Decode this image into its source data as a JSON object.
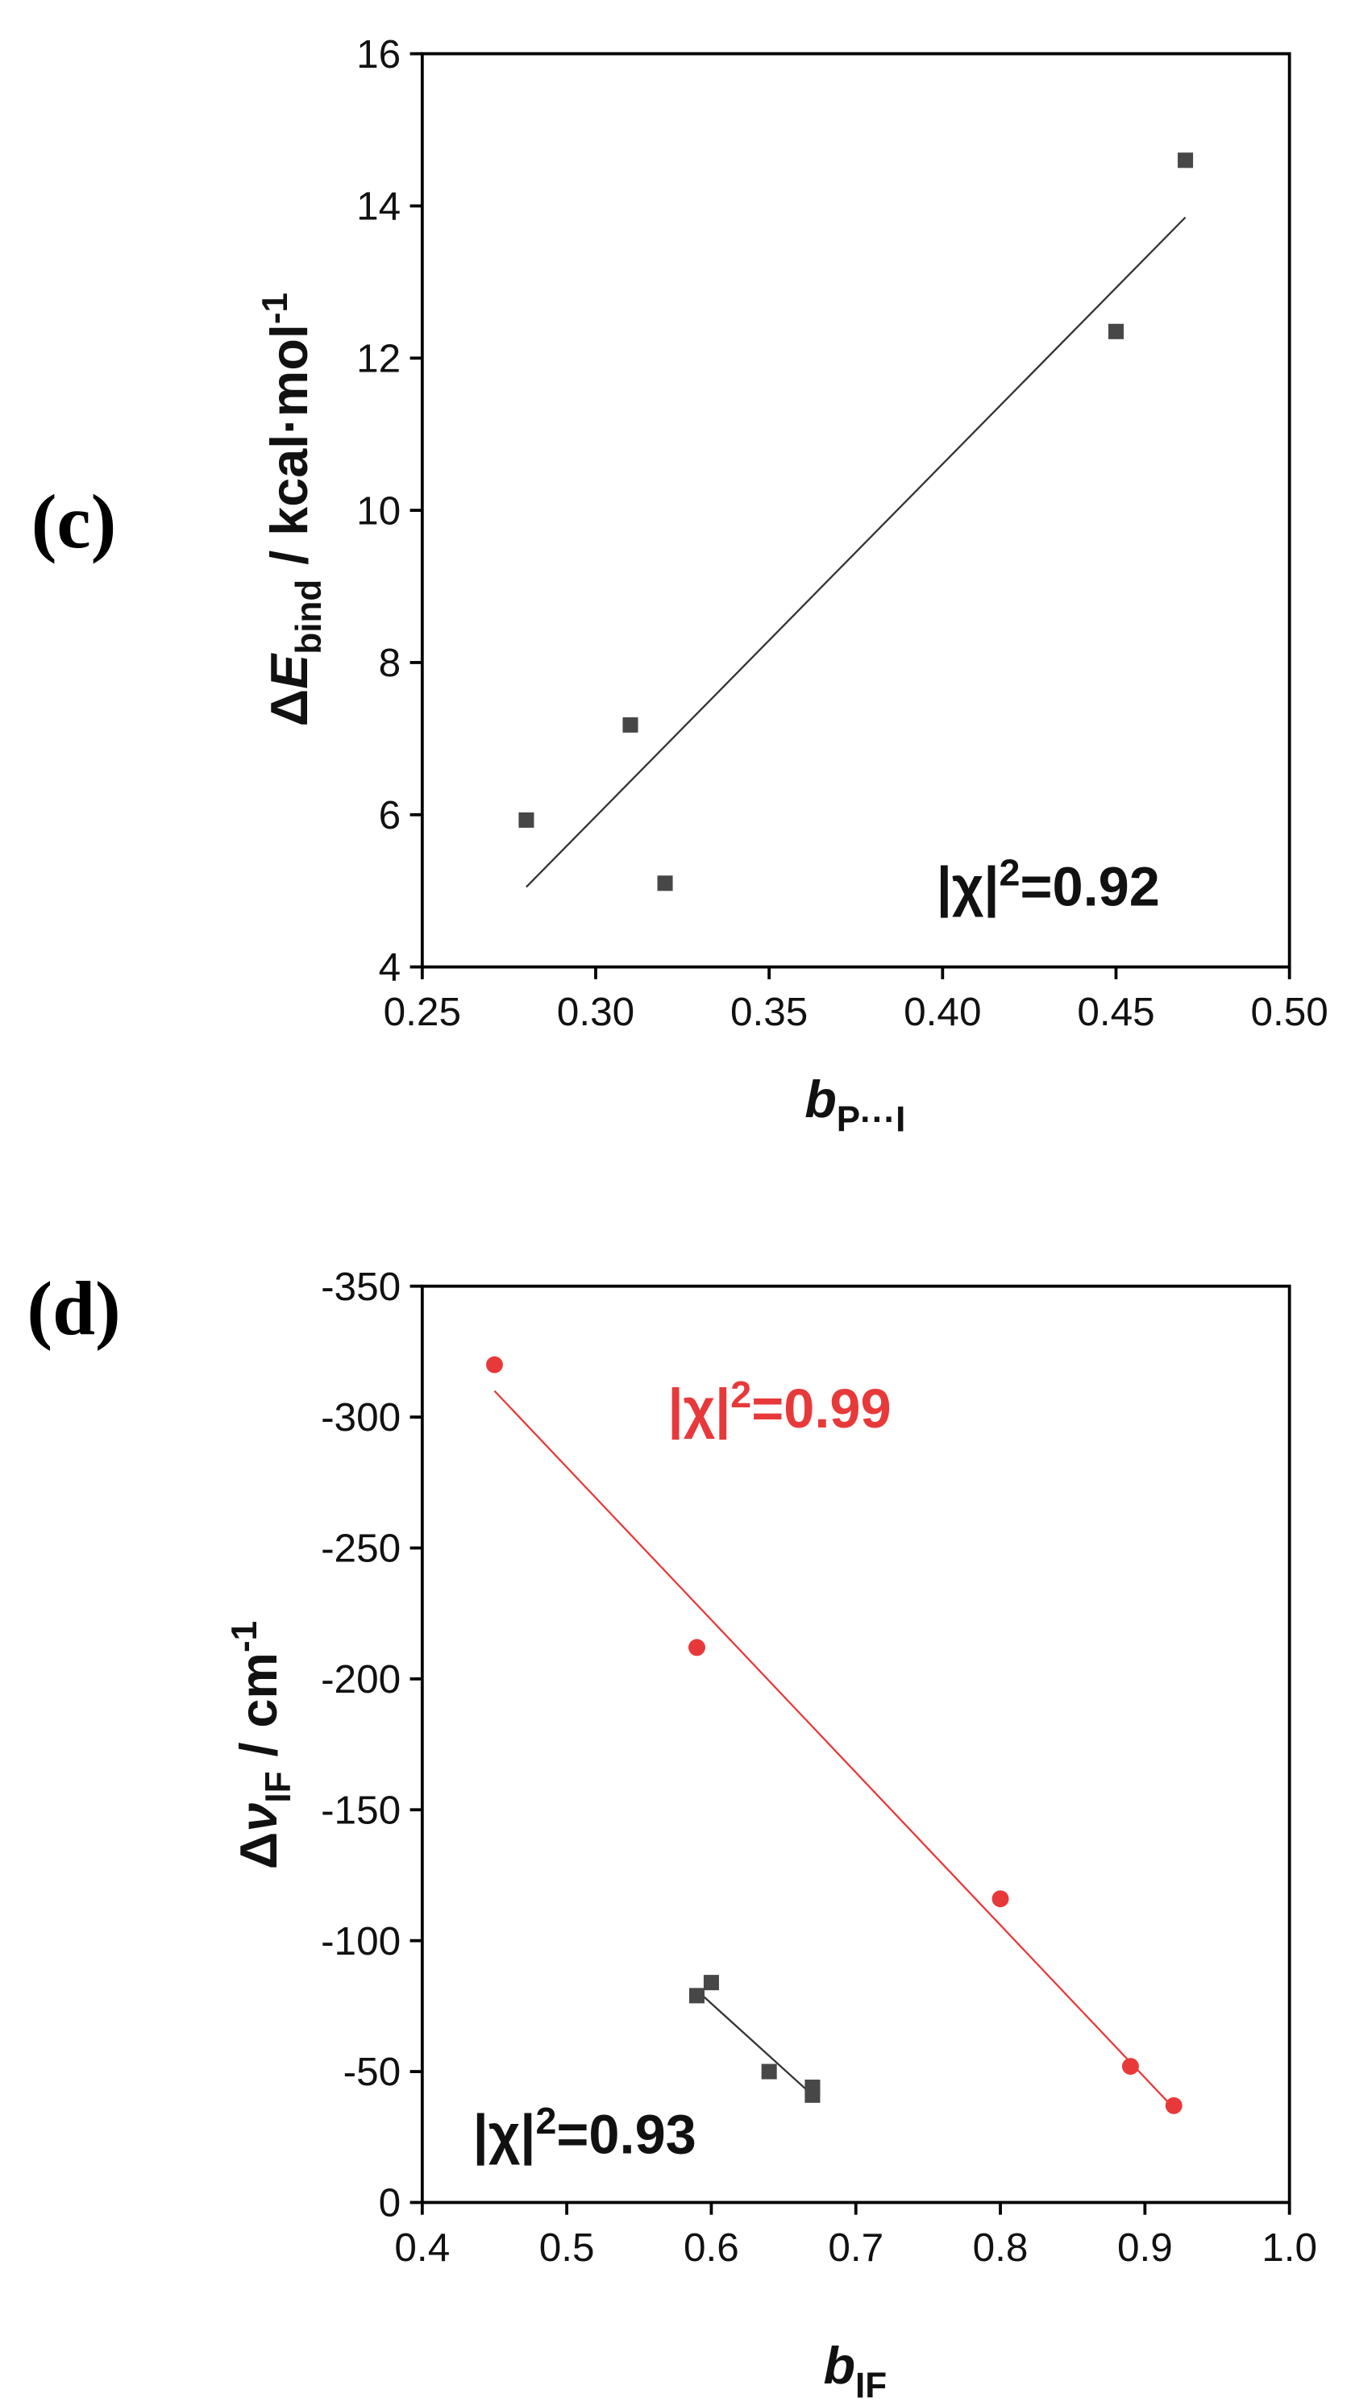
{
  "chart_data": [
    {
      "type": "scatter",
      "panel_label": "(c)",
      "x_label": [
        {
          "text": "b",
          "style": "italic"
        },
        {
          "text": "P···I",
          "style": "sub"
        }
      ],
      "y_label": [
        {
          "text": "Δ"
        },
        {
          "text": "E",
          "style": "italic"
        },
        {
          "text": "bind",
          "style": "sub"
        },
        {
          "text": " / kcal·mol"
        },
        {
          "text": "-1",
          "style": "sup"
        }
      ],
      "xlim": [
        0.25,
        0.5
      ],
      "xticks": [
        0.25,
        {
          "value": 0.3,
          "label": "0.30"
        },
        0.35,
        {
          "value": 0.4,
          "label": "0.40"
        },
        0.45,
        {
          "value": 0.5,
          "label": "0.50"
        }
      ],
      "ylim": [
        4,
        16
      ],
      "yticks": [
        4,
        6,
        8,
        10,
        12,
        14,
        16
      ],
      "series": [
        {
          "color": "#474747",
          "marker": "square",
          "x": [
            0.28,
            0.31,
            0.32,
            0.45,
            0.47
          ],
          "values": [
            5.93,
            7.18,
            5.1,
            12.35,
            14.6
          ],
          "fit": {
            "x": [
              0.28,
              0.47
            ],
            "values": [
              5.05,
              13.85
            ]
          },
          "annotation": [
            {
              "text": "|χ|"
            },
            {
              "text": "2",
              "style": "sup"
            },
            {
              "text": "=0.92"
            }
          ]
        }
      ]
    },
    {
      "type": "scatter",
      "panel_label": "(d)",
      "x_label": [
        {
          "text": "b",
          "style": "italic"
        },
        {
          "text": "IF",
          "style": "sub"
        }
      ],
      "y_label": [
        {
          "text": "Δ"
        },
        {
          "text": "ν",
          "style": "italic"
        },
        {
          "text": "IF",
          "style": "sub"
        },
        {
          "text": " / cm"
        },
        {
          "text": "-1",
          "style": "sup"
        }
      ],
      "xlim": [
        0.4,
        1.0
      ],
      "xticks": [
        0.4,
        0.5,
        0.6,
        0.7,
        0.8,
        0.9,
        {
          "value": 1.0,
          "label": "1.0"
        }
      ],
      "ylim": [
        0,
        -350
      ],
      "yticks": [
        0,
        -50,
        -100,
        -150,
        -200,
        -250,
        -300,
        -350
      ],
      "series": [
        {
          "color": "#e8393a",
          "marker": "circle",
          "x": [
            0.45,
            0.59,
            0.8,
            0.89,
            0.92
          ],
          "values": [
            -320,
            -212,
            -116,
            -52,
            -37
          ],
          "fit": {
            "x": [
              0.45,
              0.92
            ],
            "values": [
              -310,
              -36
            ]
          },
          "annotation": [
            {
              "text": "|χ|"
            },
            {
              "text": "2",
              "style": "sup"
            },
            {
              "text": "=0.99"
            }
          ]
        },
        {
          "color": "#474747",
          "marker": "square",
          "x": [
            0.59,
            0.6,
            0.64,
            0.67,
            0.67
          ],
          "values": [
            -79,
            -84,
            -50,
            -44,
            -41
          ],
          "fit": {
            "x": [
              0.59,
              0.67
            ],
            "values": [
              -81,
              -41
            ]
          },
          "annotation": [
            {
              "text": "|χ|"
            },
            {
              "text": "2",
              "style": "sup"
            },
            {
              "text": "=0.93"
            }
          ]
        }
      ]
    }
  ]
}
